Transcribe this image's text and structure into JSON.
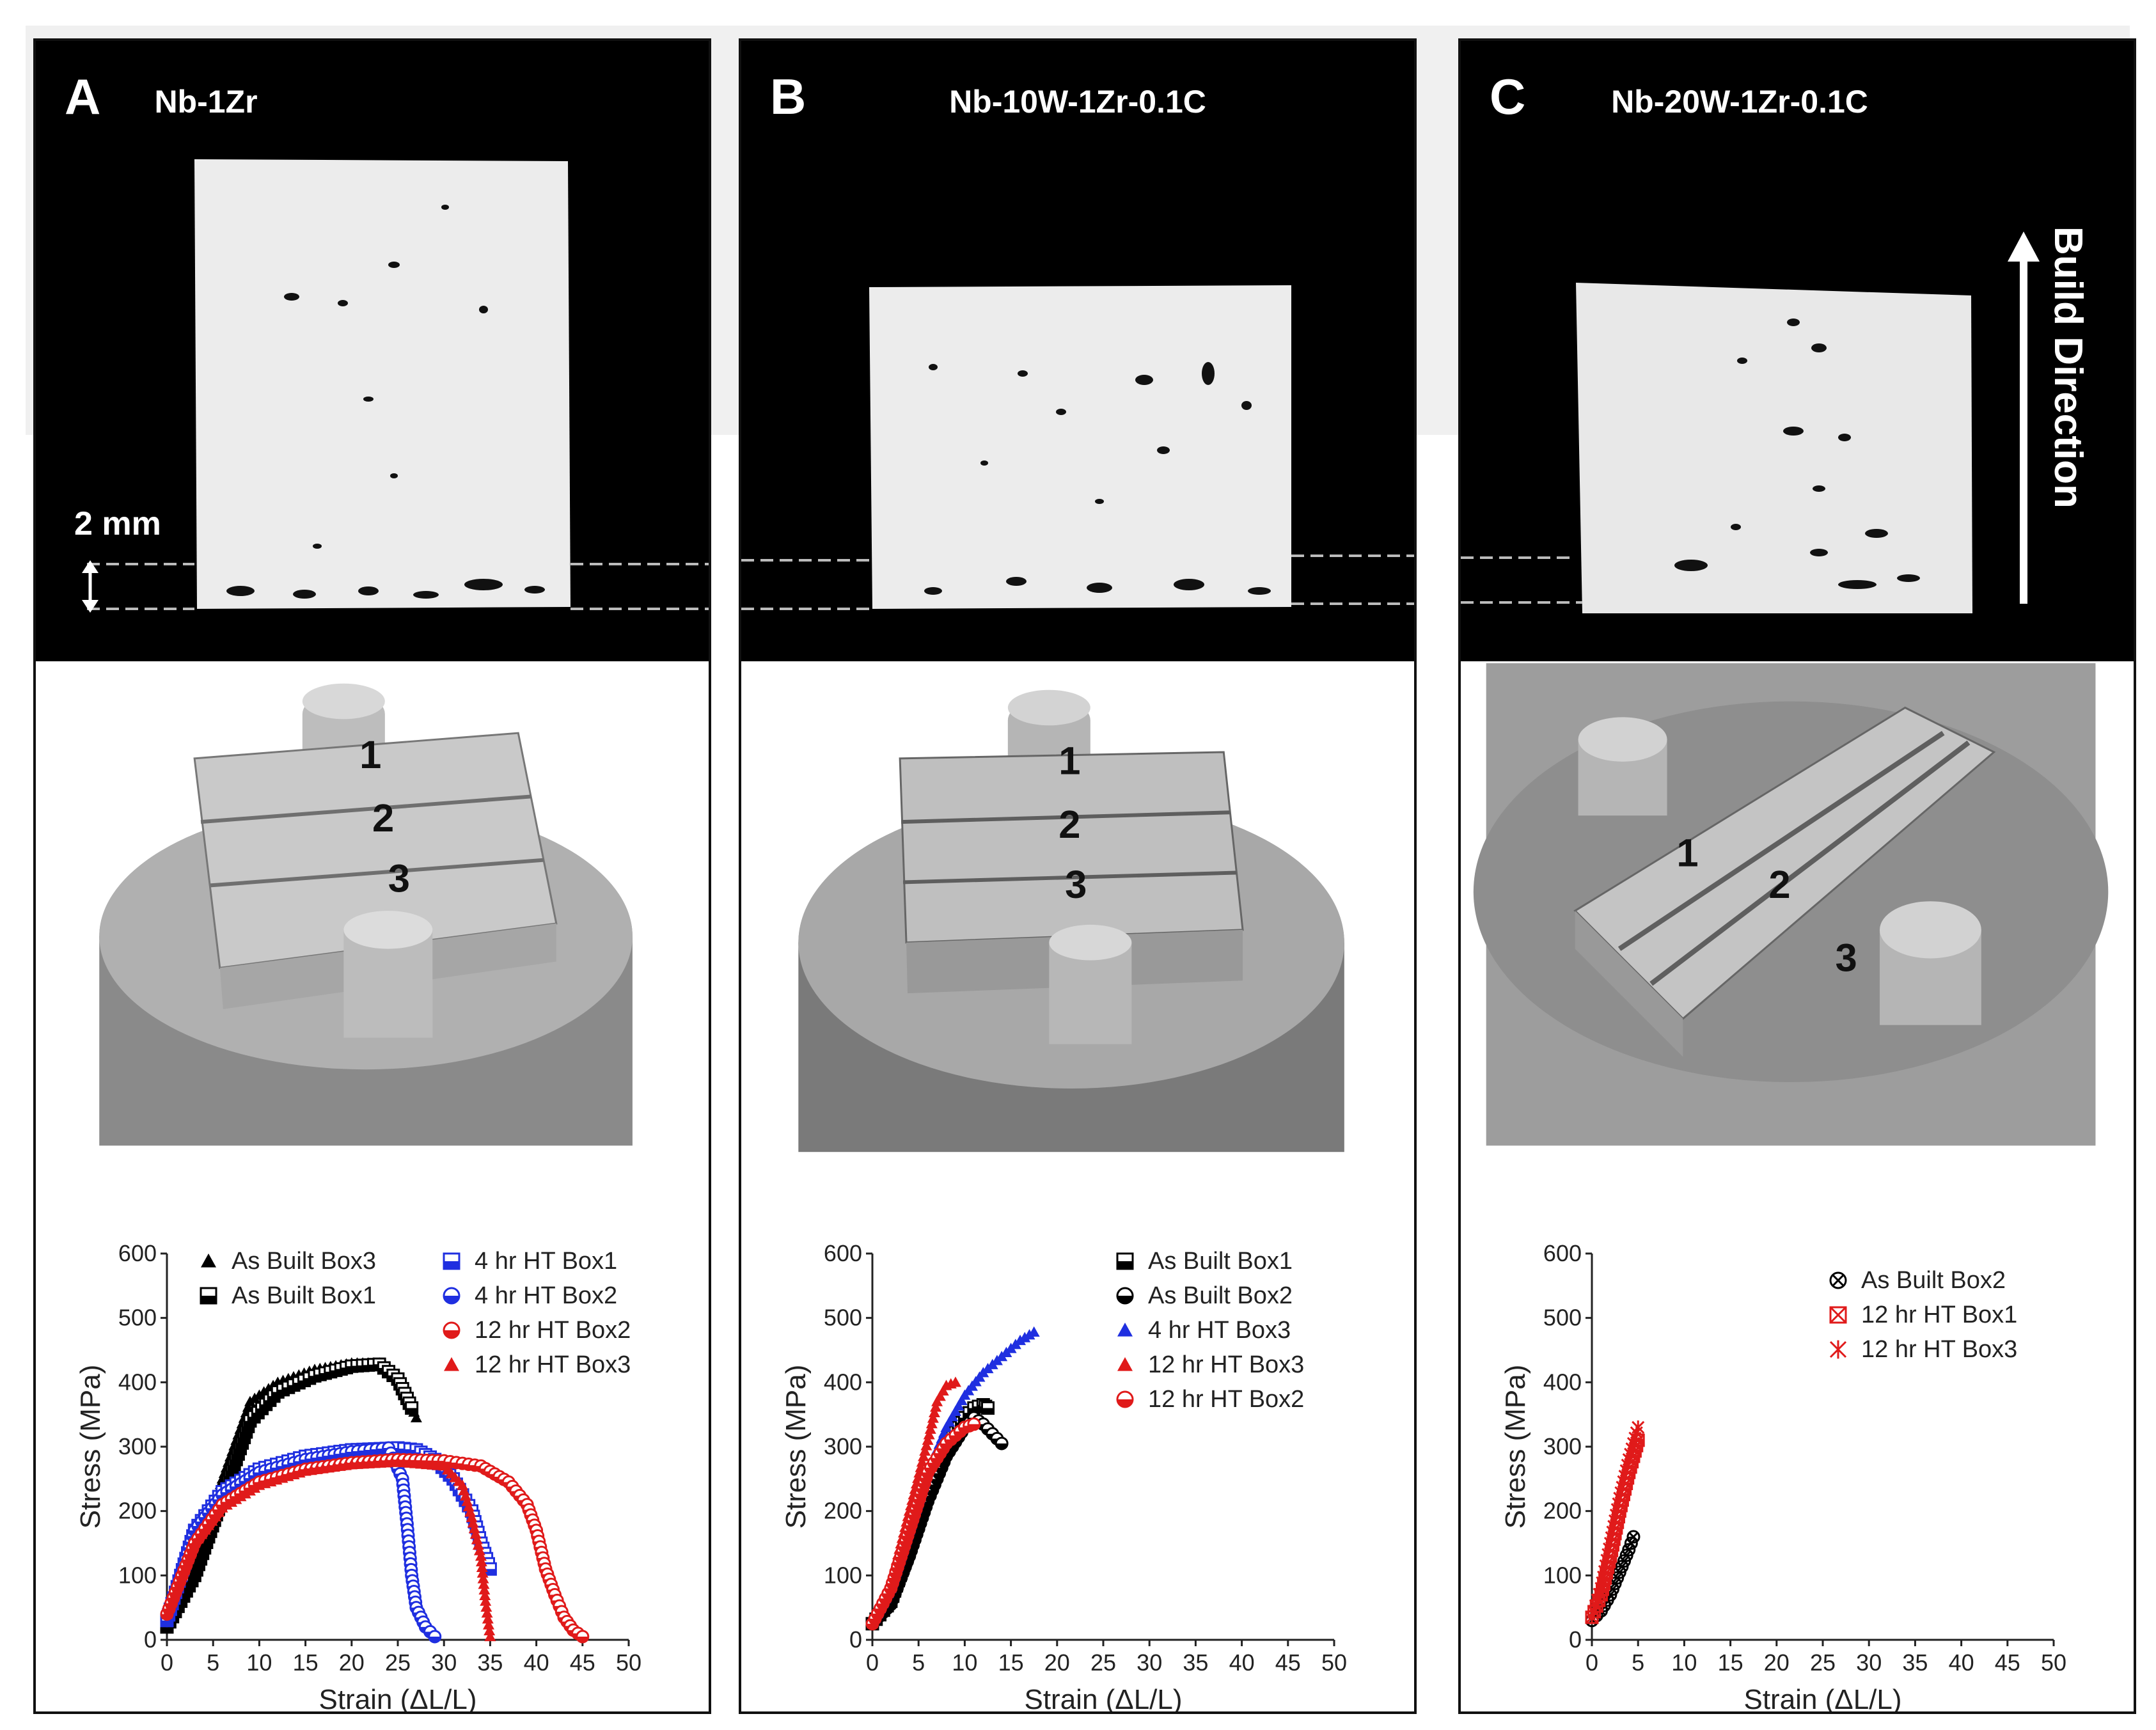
{
  "panels": [
    {
      "letter": "A",
      "title": "Nb-1Zr",
      "scale_label": "2 mm",
      "parts": [
        "1",
        "2",
        "3"
      ]
    },
    {
      "letter": "B",
      "title": "Nb-10W-1Zr-0.1C",
      "parts": [
        "1",
        "2",
        "3"
      ]
    },
    {
      "letter": "C",
      "title": "Nb-20W-1Zr-0.1C",
      "build_label": "Build Direction",
      "parts": [
        "1",
        "2",
        "3"
      ]
    }
  ],
  "chart_data": [
    {
      "type": "scatter",
      "xlabel": "Strain (ΔL/L)",
      "ylabel": "Stress (MPa)",
      "xlim": [
        0,
        50
      ],
      "ylim": [
        0,
        600
      ],
      "xticks": [
        0,
        5,
        10,
        15,
        20,
        25,
        30,
        35,
        40,
        45,
        50
      ],
      "yticks": [
        0,
        100,
        200,
        300,
        400,
        500,
        600
      ],
      "series": [
        {
          "name": "As Built Box3",
          "color": "#000000",
          "marker": "triangle",
          "points": [
            [
              0,
              25
            ],
            [
              3,
              120
            ],
            [
              6,
              250
            ],
            [
              9,
              370
            ],
            [
              12,
              400
            ],
            [
              16,
              420
            ],
            [
              20,
              430
            ],
            [
              23,
              430
            ],
            [
              25,
              410
            ],
            [
              26,
              380
            ],
            [
              27,
              345
            ]
          ]
        },
        {
          "name": "As Built Box1",
          "color": "#000000",
          "marker": "half-square",
          "points": [
            [
              0,
              20
            ],
            [
              3,
              100
            ],
            [
              6,
              220
            ],
            [
              9,
              340
            ],
            [
              12,
              385
            ],
            [
              16,
              410
            ],
            [
              20,
              425
            ],
            [
              23,
              428
            ],
            [
              25,
              405
            ],
            [
              26.5,
              360
            ]
          ]
        },
        {
          "name": "4 hr HT Box1",
          "color": "#1f2fe0",
          "marker": "half-square",
          "points": [
            [
              0,
              30
            ],
            [
              3,
              170
            ],
            [
              6,
              230
            ],
            [
              10,
              265
            ],
            [
              15,
              285
            ],
            [
              20,
              295
            ],
            [
              25,
              298
            ],
            [
              27,
              295
            ],
            [
              29,
              280
            ],
            [
              31,
              250
            ],
            [
              33,
              200
            ],
            [
              34,
              150
            ],
            [
              35,
              110
            ]
          ]
        },
        {
          "name": "4 hr HT Box2",
          "color": "#1f2fe0",
          "marker": "half-circle",
          "points": [
            [
              0,
              30
            ],
            [
              3,
              170
            ],
            [
              6,
              225
            ],
            [
              10,
              260
            ],
            [
              15,
              280
            ],
            [
              20,
              292
            ],
            [
              24,
              298
            ],
            [
              25.5,
              250
            ],
            [
              26,
              180
            ],
            [
              26.5,
              100
            ],
            [
              27,
              50
            ],
            [
              28,
              20
            ],
            [
              29,
              5
            ]
          ]
        },
        {
          "name": "12 hr HT Box2",
          "color": "#e01a1a",
          "marker": "half-circle",
          "points": [
            [
              0,
              40
            ],
            [
              3,
              150
            ],
            [
              6,
              210
            ],
            [
              10,
              245
            ],
            [
              15,
              265
            ],
            [
              20,
              275
            ],
            [
              25,
              280
            ],
            [
              30,
              278
            ],
            [
              34,
              270
            ],
            [
              37,
              245
            ],
            [
              39,
              210
            ],
            [
              40,
              170
            ],
            [
              41,
              110
            ],
            [
              42,
              70
            ],
            [
              43,
              35
            ],
            [
              44,
              15
            ],
            [
              45,
              5
            ]
          ]
        },
        {
          "name": "12 hr HT Box3",
          "color": "#e01a1a",
          "marker": "triangle",
          "points": [
            [
              0,
              40
            ],
            [
              3,
              150
            ],
            [
              6,
              205
            ],
            [
              10,
              240
            ],
            [
              15,
              262
            ],
            [
              20,
              272
            ],
            [
              25,
              276
            ],
            [
              30,
              270
            ],
            [
              32,
              240
            ],
            [
              33,
              190
            ],
            [
              34,
              130
            ],
            [
              34.5,
              60
            ],
            [
              35,
              5
            ]
          ]
        }
      ]
    },
    {
      "type": "scatter",
      "xlabel": "Strain (ΔL/L)",
      "ylabel": "Stress (MPa)",
      "xlim": [
        0,
        50
      ],
      "ylim": [
        0,
        600
      ],
      "xticks": [
        0,
        5,
        10,
        15,
        20,
        25,
        30,
        35,
        40,
        45,
        50
      ],
      "yticks": [
        0,
        100,
        200,
        300,
        400,
        500,
        600
      ],
      "series": [
        {
          "name": "As Built Box1",
          "color": "#000000",
          "marker": "half-square",
          "points": [
            [
              0,
              25
            ],
            [
              2,
              60
            ],
            [
              4,
              140
            ],
            [
              6,
              230
            ],
            [
              8,
              300
            ],
            [
              10,
              345
            ],
            [
              11,
              360
            ],
            [
              12,
              365
            ],
            [
              12.5,
              360
            ]
          ]
        },
        {
          "name": "As Built Box2",
          "color": "#000000",
          "marker": "half-circle",
          "points": [
            [
              0,
              25
            ],
            [
              2,
              55
            ],
            [
              4,
              130
            ],
            [
              6,
              215
            ],
            [
              8,
              285
            ],
            [
              10,
              330
            ],
            [
              11,
              345
            ],
            [
              12,
              335
            ],
            [
              13,
              320
            ],
            [
              14,
              305
            ]
          ]
        },
        {
          "name": "4 hr HT Box3",
          "color": "#1f2fe0",
          "marker": "triangle",
          "points": [
            [
              0,
              25
            ],
            [
              2,
              80
            ],
            [
              4,
              170
            ],
            [
              6,
              260
            ],
            [
              8,
              330
            ],
            [
              10,
              380
            ],
            [
              12,
              415
            ],
            [
              14,
              440
            ],
            [
              16,
              465
            ],
            [
              17.5,
              478
            ]
          ]
        },
        {
          "name": "12 hr HT Box3",
          "color": "#e01a1a",
          "marker": "triangle",
          "points": [
            [
              0,
              25
            ],
            [
              2,
              90
            ],
            [
              4,
              200
            ],
            [
              6,
              310
            ],
            [
              7,
              370
            ],
            [
              8,
              395
            ],
            [
              9,
              400
            ]
          ]
        },
        {
          "name": "12 hr HT Box2",
          "color": "#e01a1a",
          "marker": "half-circle",
          "points": [
            [
              0,
              25
            ],
            [
              2,
              80
            ],
            [
              4,
              170
            ],
            [
              6,
              260
            ],
            [
              8,
              305
            ],
            [
              10,
              330
            ],
            [
              11,
              335
            ]
          ]
        }
      ]
    },
    {
      "type": "scatter",
      "xlabel": "Strain (ΔL/L)",
      "ylabel": "Stress (MPa)",
      "xlim": [
        0,
        50
      ],
      "ylim": [
        0,
        600
      ],
      "xticks": [
        0,
        5,
        10,
        15,
        20,
        25,
        30,
        35,
        40,
        45,
        50
      ],
      "yticks": [
        0,
        100,
        200,
        300,
        400,
        500,
        600
      ],
      "series": [
        {
          "name": "As Built Box2",
          "color": "#000000",
          "marker": "x-circle",
          "points": [
            [
              0,
              30
            ],
            [
              1,
              45
            ],
            [
              2,
              70
            ],
            [
              3,
              105
            ],
            [
              4,
              140
            ],
            [
              4.5,
              160
            ]
          ]
        },
        {
          "name": "12 hr HT Box1",
          "color": "#e01a1a",
          "marker": "x-square",
          "points": [
            [
              0,
              35
            ],
            [
              1,
              70
            ],
            [
              2,
              130
            ],
            [
              3,
              200
            ],
            [
              4,
              260
            ],
            [
              5,
              310
            ]
          ]
        },
        {
          "name": "12 hr HT Box3",
          "color": "#e01a1a",
          "marker": "x-star",
          "points": [
            [
              0,
              35
            ],
            [
              1,
              80
            ],
            [
              2,
              150
            ],
            [
              3,
              220
            ],
            [
              4,
              280
            ],
            [
              5,
              330
            ]
          ]
        }
      ]
    }
  ]
}
